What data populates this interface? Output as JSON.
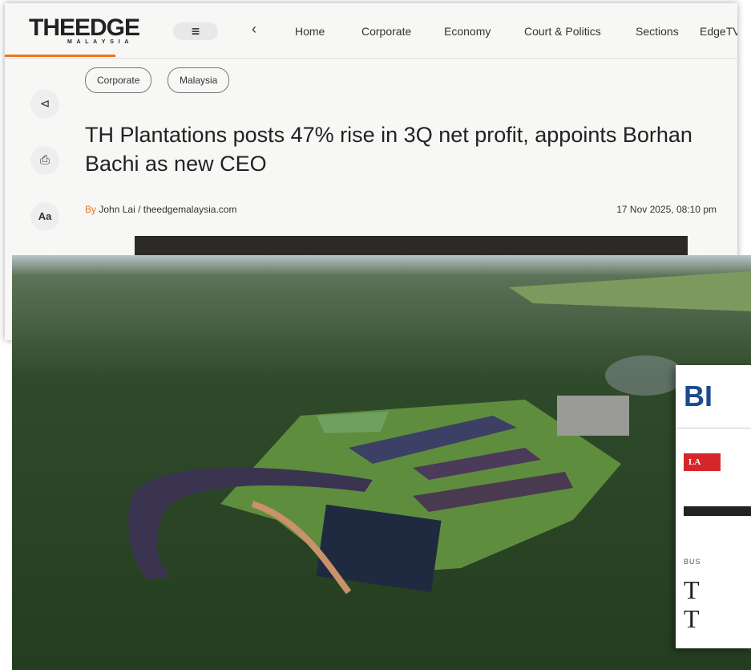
{
  "header": {
    "logo_main": "THEEDGE",
    "logo_sub": "M A L A Y S I A",
    "nav": [
      "Home",
      "Corporate",
      "Economy",
      "Court & Politics",
      "Sections",
      "EdgeTV"
    ]
  },
  "article": {
    "tags": [
      "Corporate",
      "Malaysia"
    ],
    "title": "TH Plantations posts 47% rise in 3Q net profit, appoints Borhan Bachi as new CEO",
    "by": "By",
    "author": "John Lai /",
    "source": "theedgemalaysia.com",
    "date": "17 Nov 2025, 08:10 pm",
    "font_button": "Aa"
  },
  "side_card": {
    "masthead": "BI",
    "badge": "LA",
    "section": "BUS",
    "headline_lines": [
      "T",
      "T"
    ]
  }
}
